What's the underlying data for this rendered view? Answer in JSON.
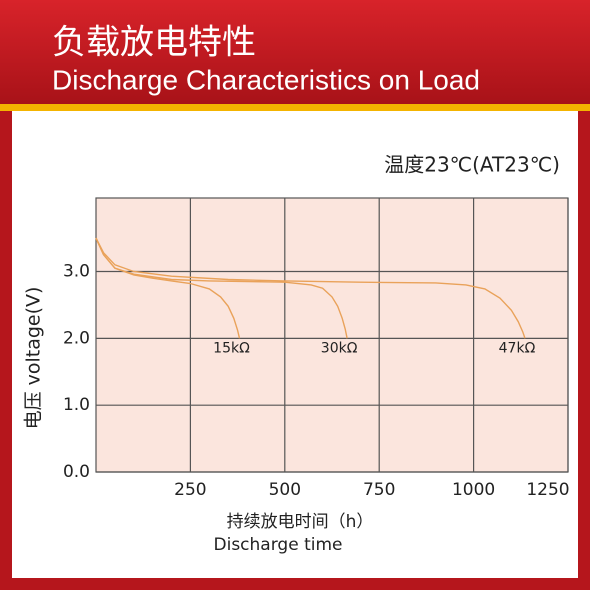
{
  "chart_data": {
    "type": "line",
    "title": "负载放电特性",
    "subtitle": "Discharge Characteristics on Load",
    "annotation": "温度23℃(AT23℃)",
    "x_label": "持续放电时间（h）",
    "x_label_en": "Discharge time",
    "y_label": "电压 voltage(V)",
    "xlim": [
      0,
      1250
    ],
    "ylim": [
      0,
      4.1
    ],
    "xticks": [
      250,
      500,
      750,
      1000,
      1250
    ],
    "yticks": [
      {
        "value": 0,
        "label": "0.0"
      },
      {
        "value": 1,
        "label": "1.0"
      },
      {
        "value": 2,
        "label": "2.0"
      },
      {
        "value": 3,
        "label": "3.0"
      }
    ],
    "grid": true,
    "series": [
      {
        "name": "15kΩ",
        "color": "#e9a25a",
        "x": [
          0,
          20,
          50,
          100,
          150,
          200,
          250,
          300,
          330,
          350,
          365,
          375,
          380
        ],
        "values": [
          3.5,
          3.25,
          3.05,
          2.95,
          2.9,
          2.86,
          2.82,
          2.74,
          2.62,
          2.48,
          2.3,
          2.12,
          2.0
        ]
      },
      {
        "name": "30kΩ",
        "color": "#e9a25a",
        "x": [
          0,
          20,
          50,
          100,
          200,
          300,
          400,
          500,
          570,
          600,
          625,
          640,
          652,
          660,
          665
        ],
        "values": [
          3.5,
          3.25,
          3.05,
          2.96,
          2.88,
          2.86,
          2.85,
          2.84,
          2.8,
          2.75,
          2.62,
          2.48,
          2.3,
          2.14,
          2.0
        ]
      },
      {
        "name": "47kΩ",
        "color": "#e9a25a",
        "x": [
          0,
          20,
          50,
          100,
          200,
          350,
          500,
          700,
          900,
          980,
          1030,
          1070,
          1100,
          1118,
          1130,
          1136
        ],
        "values": [
          3.5,
          3.28,
          3.1,
          3.0,
          2.93,
          2.88,
          2.86,
          2.84,
          2.83,
          2.8,
          2.74,
          2.6,
          2.42,
          2.25,
          2.1,
          2.0
        ]
      }
    ]
  }
}
